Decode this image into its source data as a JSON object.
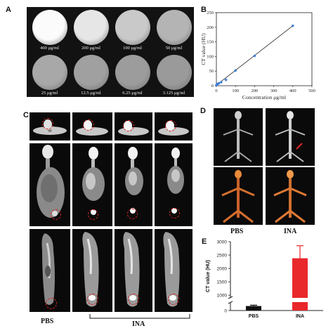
{
  "panels": {
    "A": {
      "label": "A",
      "wells": [
        {
          "conc": "400 μg/ml",
          "shade": "#fbfbfb"
        },
        {
          "conc": "200 μg/ml",
          "shade": "#e6e6e6"
        },
        {
          "conc": "100 μg/ml",
          "shade": "#c9c9c9"
        },
        {
          "conc": "50 μg/ml",
          "shade": "#b4b4b4"
        },
        {
          "conc": "25 μg/ml",
          "shade": "#a8a8a8"
        },
        {
          "conc": "12.5 μg/ml",
          "shade": "#a0a0a0"
        },
        {
          "conc": "6.25 μg/ml",
          "shade": "#9c9c9c"
        },
        {
          "conc": "3.125 μg/ml",
          "shade": "#9a9a9a"
        }
      ]
    },
    "B": {
      "label": "B",
      "chart_data": {
        "type": "scatter",
        "x": [
          0,
          3.125,
          6.25,
          12.5,
          25,
          50,
          100,
          200,
          400
        ],
        "y": [
          2,
          4,
          6,
          8,
          12,
          20,
          52,
          102,
          205
        ],
        "fit_line": true,
        "xlabel": "Concentration  μg/ml",
        "ylabel": "CT  value  (HU)",
        "xlim": [
          0,
          500
        ],
        "ylim": [
          0,
          250
        ],
        "xticks": [
          0,
          100,
          200,
          300,
          400,
          500
        ],
        "yticks": [
          0,
          50,
          100,
          150,
          200,
          250
        ],
        "marker_color": "#3b7dd8",
        "line_color": "#222222"
      }
    },
    "C": {
      "label": "C",
      "group_labels": {
        "pbs": "PBS",
        "ina": "INA"
      }
    },
    "D": {
      "label": "D",
      "group_labels": {
        "pbs": "PBS",
        "ina": "INA"
      }
    },
    "E": {
      "label": "E",
      "chart_data": {
        "type": "bar",
        "categories": [
          "PBS",
          "INA"
        ],
        "values": [
          160,
          2380
        ],
        "errors": [
          30,
          470
        ],
        "ylabel": "CT value (HU)",
        "ylim": [
          0,
          3000
        ],
        "axis_break": [
          300,
          900
        ],
        "yticks": [
          0,
          1000,
          1500,
          2000,
          2500,
          3000
        ],
        "colors": [
          "#111111",
          "#e8282b"
        ]
      }
    }
  }
}
